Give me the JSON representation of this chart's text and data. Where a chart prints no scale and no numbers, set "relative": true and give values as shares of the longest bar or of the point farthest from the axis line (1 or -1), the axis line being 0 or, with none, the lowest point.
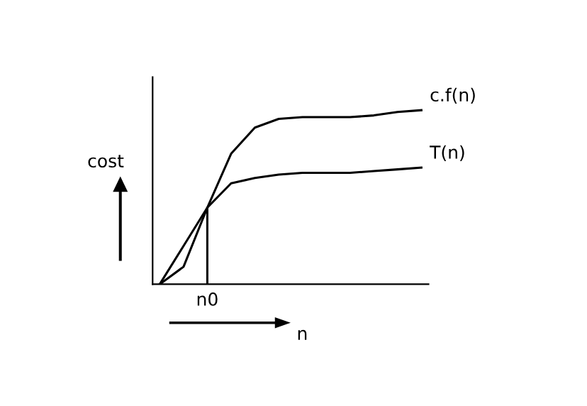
{
  "chart_data": {
    "type": "line",
    "relative": true,
    "xlabel": "n",
    "ylabel": "cost",
    "categories": [
      null,
      null,
      null,
      null,
      null,
      null,
      null,
      null,
      null,
      null,
      null,
      null
    ],
    "series": [
      {
        "name": "c.f(n)",
        "color": "#000000",
        "values": [
          0,
          0.1,
          0.44,
          0.75,
          0.9,
          0.95,
          0.96,
          0.96,
          0.96,
          0.97,
          0.99,
          1
        ]
      },
      {
        "name": "T(n)",
        "color": "#000000",
        "values": [
          0,
          0.22,
          0.44,
          0.58,
          0.61,
          0.63,
          0.64,
          0.64,
          0.64,
          0.65,
          0.66,
          0.67
        ]
      }
    ],
    "annotations": [
      "n0"
    ],
    "grid": false,
    "legend": false,
    "marker": "none",
    "line_style": "solid"
  }
}
